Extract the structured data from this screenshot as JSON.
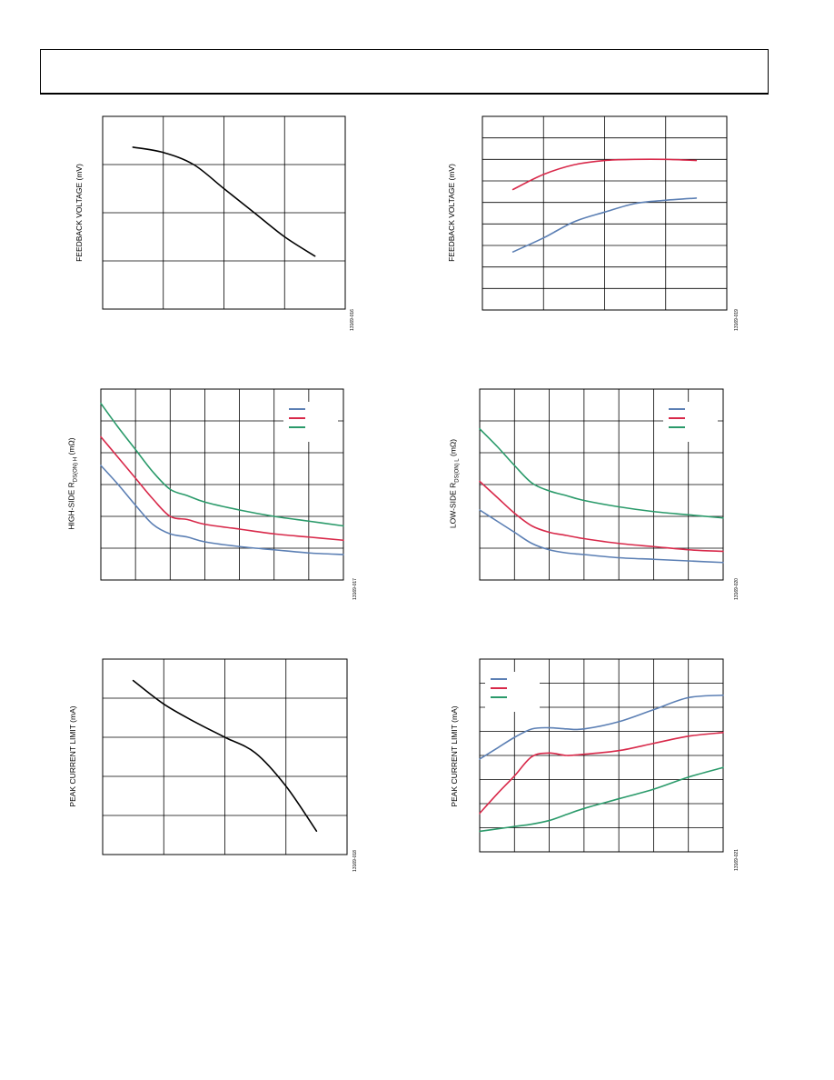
{
  "colors": {
    "grid": "#000000",
    "black": "#000000",
    "blue": "#5b7fb4",
    "red": "#d8294a",
    "green": "#2a9a6a"
  },
  "chart_data": [
    {
      "id": "fb-voltage-1",
      "type": "line",
      "ylabel": "FEEDBACK VOLTAGE (mV)",
      "figure_id": "13169-016",
      "xlim": [
        0,
        4
      ],
      "ylim": [
        0,
        4
      ],
      "grid": {
        "cols": 4,
        "rows": 4
      },
      "legend": null,
      "series": [
        {
          "color_key": "black",
          "x": [
            0.5,
            1.0,
            1.5,
            2.0,
            2.5,
            3.0,
            3.5
          ],
          "y": [
            3.36,
            3.25,
            3.0,
            2.5,
            2.0,
            1.5,
            1.1
          ]
        }
      ]
    },
    {
      "id": "fb-voltage-2",
      "type": "line",
      "ylabel": "FEEDBACK VOLTAGE (mV)",
      "figure_id": "13169-019",
      "xlim": [
        0,
        4
      ],
      "ylim": [
        0,
        9
      ],
      "grid": {
        "cols": 4,
        "rows": 9
      },
      "legend": null,
      "series": [
        {
          "color_key": "red",
          "x": [
            0.5,
            1.0,
            1.5,
            2.0,
            2.5,
            3.0,
            3.5
          ],
          "y": [
            5.6,
            6.3,
            6.75,
            6.95,
            7.0,
            7.0,
            6.95
          ]
        },
        {
          "color_key": "blue",
          "x": [
            0.5,
            1.0,
            1.5,
            2.0,
            2.5,
            3.0,
            3.5
          ],
          "y": [
            2.7,
            3.35,
            4.1,
            4.55,
            4.95,
            5.1,
            5.2
          ]
        }
      ]
    },
    {
      "id": "hs-rdson",
      "type": "line",
      "ylabel_parts": [
        "HIGH-SIDE R",
        "DS(ON) H",
        " (mΩ)"
      ],
      "figure_id": "13169-017",
      "xlim": [
        0,
        7
      ],
      "ylim": [
        0,
        6
      ],
      "grid": {
        "cols": 7,
        "rows": 6
      },
      "legend": {
        "position": "top-right"
      },
      "series": [
        {
          "color_key": "blue",
          "x": [
            0,
            0.5,
            1.0,
            1.5,
            2.0,
            2.5,
            3.0,
            4.0,
            5.0,
            6.0,
            7.0
          ],
          "y": [
            3.6,
            3.0,
            2.35,
            1.75,
            1.45,
            1.35,
            1.2,
            1.05,
            0.95,
            0.85,
            0.8
          ]
        },
        {
          "color_key": "red",
          "x": [
            0,
            0.5,
            1.0,
            1.5,
            2.0,
            2.5,
            3.0,
            4.0,
            5.0,
            6.0,
            7.0
          ],
          "y": [
            4.5,
            3.85,
            3.2,
            2.55,
            2.0,
            1.9,
            1.75,
            1.6,
            1.45,
            1.35,
            1.25
          ]
        },
        {
          "color_key": "green",
          "x": [
            0,
            0.5,
            1.0,
            1.5,
            2.0,
            2.5,
            3.0,
            4.0,
            5.0,
            6.0,
            7.0
          ],
          "y": [
            5.55,
            4.8,
            4.1,
            3.4,
            2.85,
            2.65,
            2.45,
            2.2,
            2.0,
            1.85,
            1.7
          ]
        }
      ]
    },
    {
      "id": "ls-rdson",
      "type": "line",
      "ylabel_parts": [
        "LOW-SIDE R",
        "DS(ON) L",
        " (mΩ)"
      ],
      "figure_id": "13169-020",
      "xlim": [
        0,
        7
      ],
      "ylim": [
        0,
        6
      ],
      "grid": {
        "cols": 7,
        "rows": 6
      },
      "legend": {
        "position": "top-right"
      },
      "series": [
        {
          "color_key": "blue",
          "x": [
            0,
            0.5,
            1.0,
            1.5,
            2.0,
            2.5,
            3.0,
            4.0,
            5.0,
            6.0,
            7.0
          ],
          "y": [
            2.2,
            1.85,
            1.5,
            1.15,
            0.95,
            0.85,
            0.8,
            0.7,
            0.65,
            0.6,
            0.55
          ]
        },
        {
          "color_key": "red",
          "x": [
            0,
            0.5,
            1.0,
            1.5,
            2.0,
            2.5,
            3.0,
            4.0,
            5.0,
            6.0,
            7.0
          ],
          "y": [
            3.1,
            2.6,
            2.1,
            1.7,
            1.5,
            1.4,
            1.3,
            1.15,
            1.05,
            0.95,
            0.9
          ]
        },
        {
          "color_key": "green",
          "x": [
            0,
            0.5,
            1.0,
            1.5,
            2.0,
            2.5,
            3.0,
            4.0,
            5.0,
            6.0,
            7.0
          ],
          "y": [
            4.75,
            4.2,
            3.6,
            3.05,
            2.8,
            2.65,
            2.5,
            2.3,
            2.15,
            2.05,
            1.95
          ]
        }
      ]
    },
    {
      "id": "peak-current-1",
      "type": "line",
      "ylabel": "PEAK CURRENT LIMIT (mA)",
      "figure_id": "13169-018",
      "xlim": [
        0,
        4
      ],
      "ylim": [
        0,
        5
      ],
      "grid": {
        "cols": 4,
        "rows": 5
      },
      "legend": null,
      "series": [
        {
          "color_key": "black",
          "x": [
            0.5,
            1.0,
            1.5,
            2.0,
            2.5,
            3.0,
            3.5
          ],
          "y": [
            4.45,
            3.85,
            3.4,
            3.0,
            2.6,
            1.75,
            0.6
          ]
        }
      ]
    },
    {
      "id": "peak-current-2",
      "type": "line",
      "ylabel": "PEAK CURRENT LIMIT (mA)",
      "figure_id": "13169-021",
      "xlim": [
        0,
        7
      ],
      "ylim": [
        0,
        8
      ],
      "grid": {
        "cols": 7,
        "rows": 8
      },
      "legend": {
        "position": "top-left"
      },
      "series": [
        {
          "color_key": "blue",
          "x": [
            0,
            0.5,
            1.0,
            1.5,
            2.0,
            2.5,
            3.0,
            4.0,
            5.0,
            6.0,
            7.0
          ],
          "y": [
            3.85,
            4.3,
            4.75,
            5.1,
            5.15,
            5.1,
            5.1,
            5.4,
            5.9,
            6.4,
            6.5
          ]
        },
        {
          "color_key": "red",
          "x": [
            0,
            0.5,
            1.0,
            1.5,
            2.0,
            2.5,
            3.0,
            4.0,
            5.0,
            6.0,
            7.0
          ],
          "y": [
            1.6,
            2.4,
            3.15,
            3.95,
            4.1,
            4.0,
            4.05,
            4.2,
            4.5,
            4.8,
            4.95
          ]
        },
        {
          "color_key": "green",
          "x": [
            0,
            0.5,
            1.0,
            1.5,
            2.0,
            2.5,
            3.0,
            4.0,
            5.0,
            6.0,
            7.0
          ],
          "y": [
            0.85,
            0.95,
            1.05,
            1.15,
            1.3,
            1.55,
            1.8,
            2.2,
            2.6,
            3.1,
            3.5
          ]
        }
      ]
    }
  ]
}
